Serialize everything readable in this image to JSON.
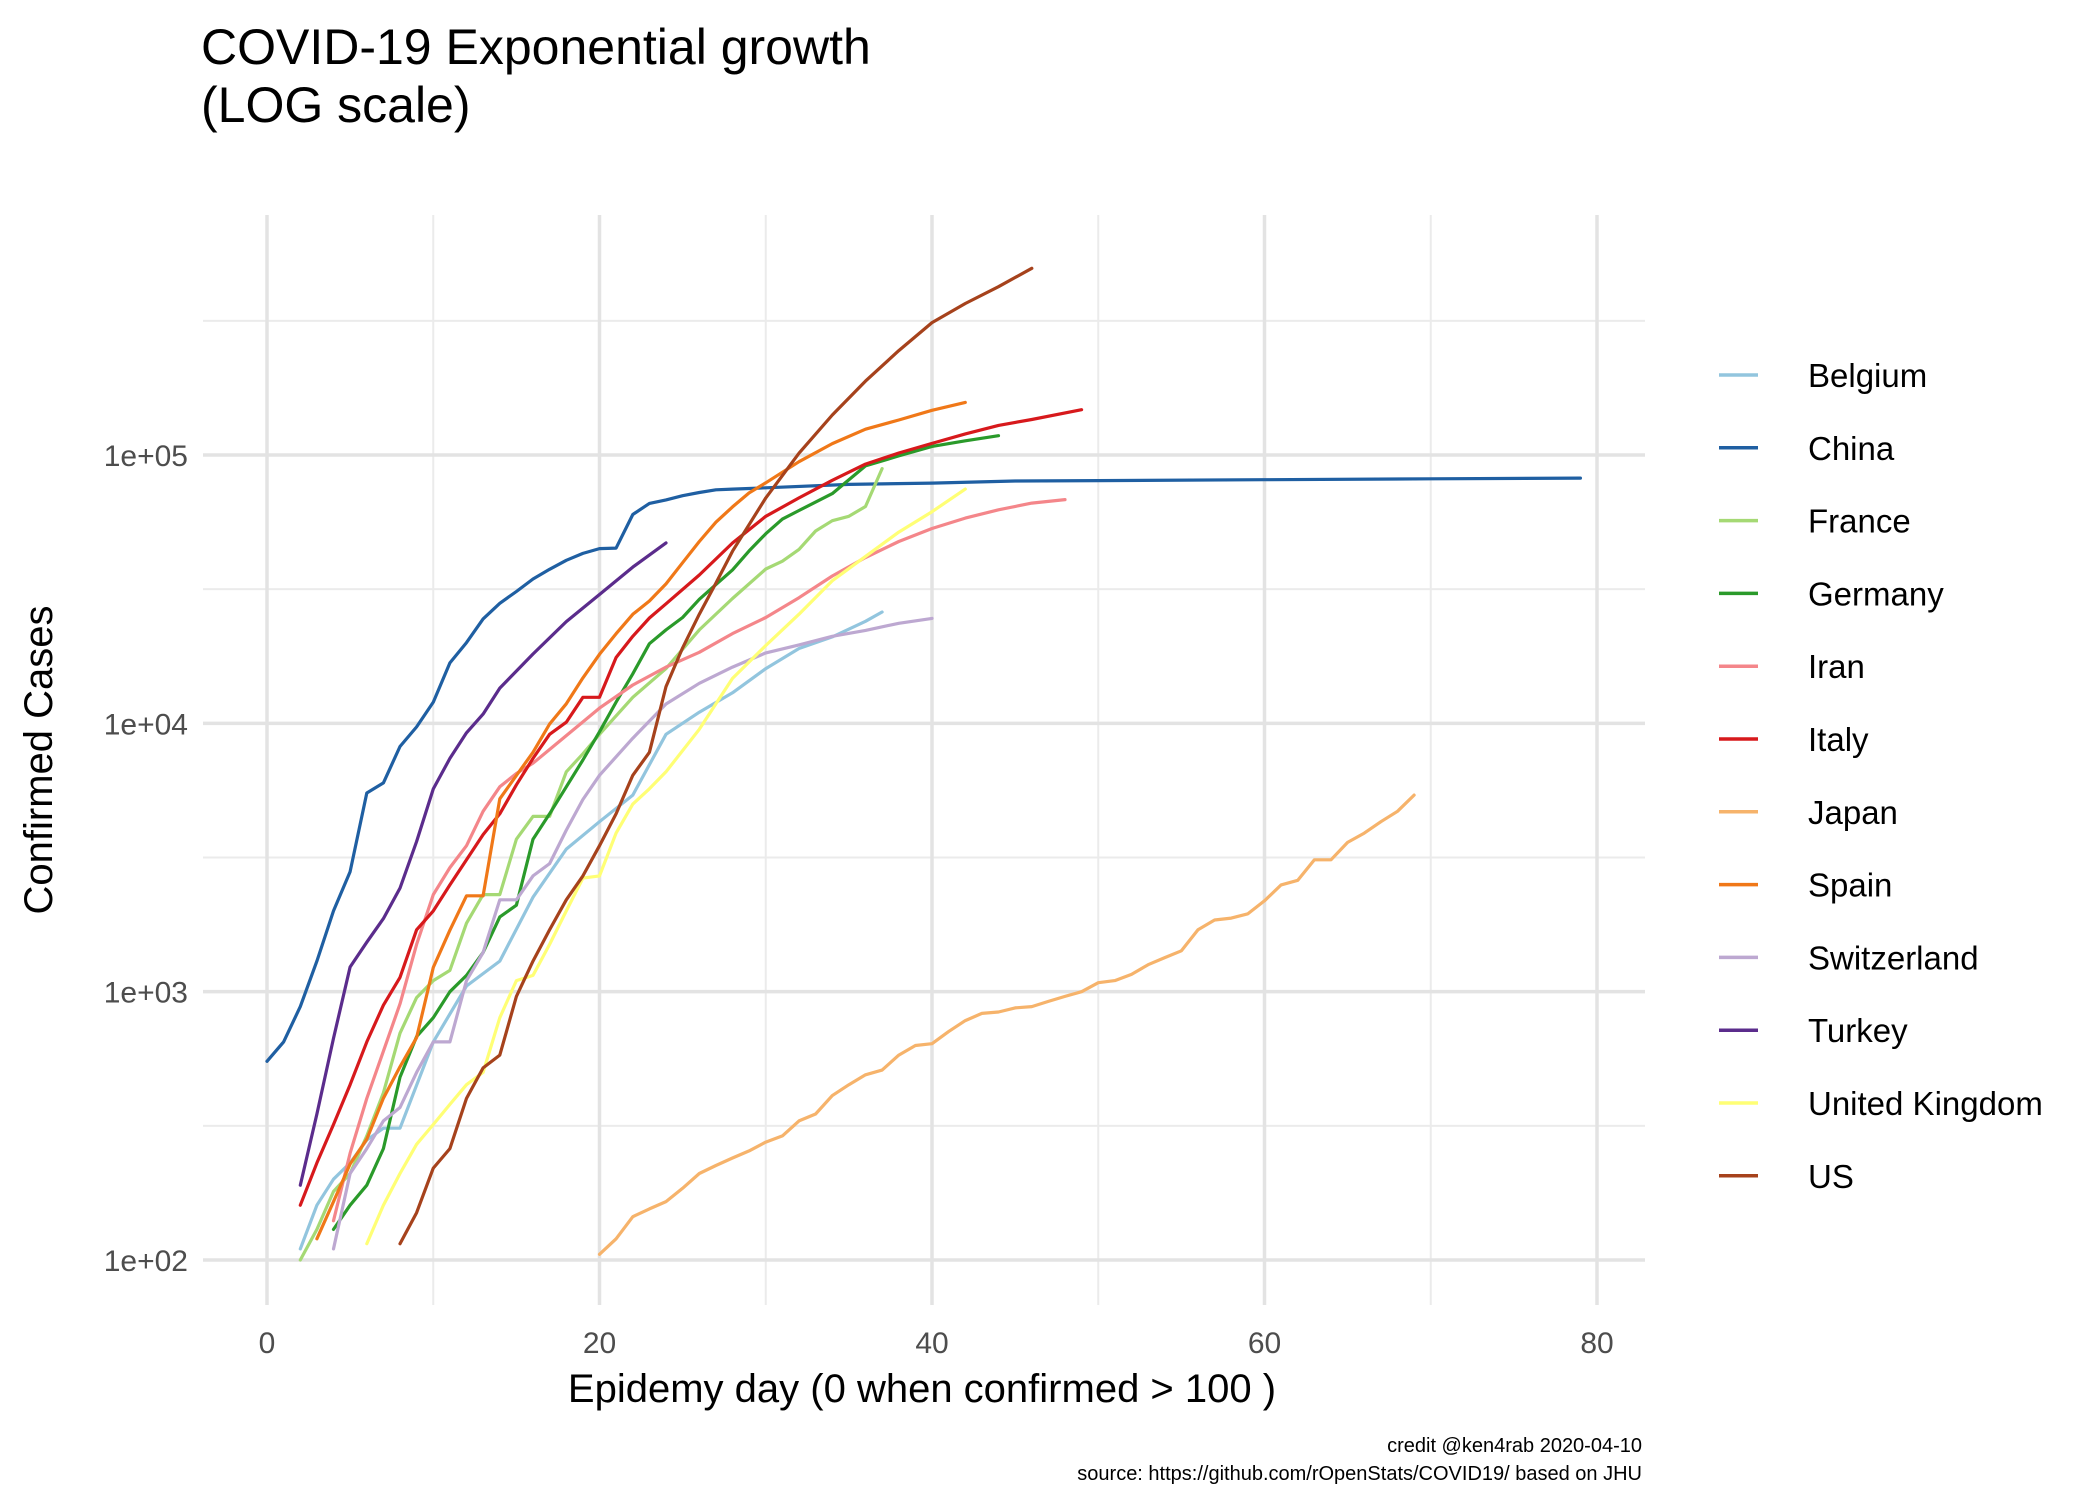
{
  "title_lines": [
    "COVID-19 Exponential growth",
    "(LOG scale)"
  ],
  "caption_lines": [
    "credit @ken4rab 2020-04-10",
    "source: https://github.com/rOpenStats/COVID19/ based on JHU"
  ],
  "chart_data": {
    "type": "line",
    "title": "COVID-19 Exponential growth (LOG scale)",
    "xlabel": "Epidemy day (0 when confirmed > 100 )",
    "ylabel": "Confirmed Cases",
    "x_scale": "linear",
    "y_scale": "log10",
    "xlim": [
      -3,
      83
    ],
    "ylim": [
      75,
      630000
    ],
    "x_ticks": [
      0,
      20,
      40,
      60,
      80
    ],
    "x_tick_labels": [
      "0",
      "20",
      "40",
      "60",
      "80"
    ],
    "y_ticks": [
      100,
      1000,
      10000,
      100000
    ],
    "y_tick_labels": [
      "1e+02",
      "1e+03",
      "1e+04",
      "1e+05"
    ],
    "grid": true,
    "legend_position": "right",
    "series": [
      {
        "name": "Belgium",
        "color": "#92c5de",
        "x": [
          2,
          3,
          4,
          5,
          6,
          7,
          8,
          10,
          12,
          14,
          16,
          18,
          20,
          22,
          24,
          26,
          28,
          30,
          32,
          34,
          36,
          37
        ],
        "y": [
          110,
          160,
          200,
          230,
          280,
          310,
          310,
          650,
          1050,
          1300,
          2250,
          3400,
          4300,
          5400,
          9100,
          11000,
          13000,
          16000,
          19000,
          21000,
          24000,
          26000
        ]
      },
      {
        "name": "China",
        "color": "#1f5fa2",
        "x": [
          0,
          1,
          2,
          3,
          4,
          5,
          6,
          7,
          8,
          9,
          10,
          11,
          12,
          13,
          14,
          15,
          16,
          17,
          18,
          19,
          20,
          21,
          22,
          23,
          24,
          25,
          26,
          27,
          28,
          29,
          30,
          35,
          40,
          45,
          50,
          60,
          70,
          79
        ],
        "y": [
          550,
          650,
          880,
          1300,
          2000,
          2800,
          5500,
          6000,
          8200,
          9700,
          12000,
          16800,
          20000,
          24500,
          28000,
          31000,
          34500,
          37500,
          40500,
          43000,
          44800,
          45000,
          60000,
          66000,
          68000,
          70500,
          72500,
          74200,
          74600,
          75000,
          75500,
          77700,
          78600,
          80000,
          80300,
          80900,
          81500,
          82000
        ]
      },
      {
        "name": "France",
        "color": "#a5d974",
        "x": [
          2,
          3,
          4,
          5,
          6,
          7,
          8,
          9,
          10,
          11,
          12,
          13,
          14,
          15,
          16,
          17,
          18,
          19,
          20,
          22,
          24,
          26,
          28,
          30,
          31,
          32,
          33,
          34,
          35,
          36,
          37
        ],
        "y": [
          100,
          130,
          180,
          210,
          290,
          420,
          700,
          950,
          1100,
          1200,
          1800,
          2300,
          2300,
          3700,
          4500,
          4500,
          6600,
          7700,
          9100,
          12500,
          16000,
          22300,
          29200,
          37600,
          40200,
          44500,
          52100,
          56900,
          59100,
          64300,
          89000
        ]
      },
      {
        "name": "Germany",
        "color": "#2a9a2a",
        "x": [
          4,
          5,
          6,
          7,
          8,
          9,
          10,
          11,
          12,
          13,
          14,
          15,
          16,
          17,
          18,
          19,
          20,
          21,
          22,
          23,
          24,
          25,
          26,
          27,
          28,
          29,
          30,
          31,
          32,
          34,
          36,
          38,
          40,
          42,
          44
        ],
        "y": [
          130,
          160,
          190,
          260,
          480,
          680,
          800,
          1000,
          1150,
          1400,
          1900,
          2100,
          3700,
          4600,
          5800,
          7300,
          9300,
          12000,
          15300,
          19800,
          22300,
          24800,
          29000,
          32900,
          37300,
          43900,
          50900,
          57700,
          62100,
          71800,
          91100,
          99200,
          107700,
          113000,
          118000
        ]
      },
      {
        "name": "Iran",
        "color": "#f4868a",
        "x": [
          4,
          5,
          6,
          7,
          8,
          9,
          10,
          11,
          12,
          13,
          14,
          15,
          16,
          18,
          20,
          22,
          24,
          26,
          28,
          30,
          32,
          34,
          36,
          38,
          40,
          42,
          44,
          46,
          48
        ],
        "y": [
          140,
          250,
          400,
          600,
          900,
          1500,
          2300,
          2900,
          3500,
          4700,
          5800,
          6500,
          7100,
          9000,
          11400,
          13900,
          16200,
          18400,
          21600,
          24800,
          29400,
          35400,
          41500,
          47600,
          53200,
          58200,
          62500,
          66200,
          68200
        ]
      },
      {
        "name": "Italy",
        "color": "#d7191c",
        "x": [
          2,
          3,
          4,
          5,
          6,
          7,
          8,
          9,
          10,
          11,
          12,
          13,
          14,
          15,
          16,
          17,
          18,
          19,
          20,
          21,
          22,
          23,
          24,
          26,
          28,
          30,
          32,
          34,
          36,
          38,
          40,
          42,
          44,
          46,
          49
        ],
        "y": [
          160,
          230,
          320,
          450,
          650,
          890,
          1130,
          1700,
          2000,
          2500,
          3100,
          3850,
          4600,
          5900,
          7400,
          9100,
          10100,
          12500,
          12500,
          17600,
          21100,
          24700,
          27900,
          35700,
          47000,
          59100,
          69200,
          80500,
          92500,
          101700,
          110500,
          119800,
          128900,
          135600,
          147500
        ]
      },
      {
        "name": "Japan",
        "color": "#f6b36b",
        "x": [
          20,
          21,
          22,
          23,
          24,
          25,
          26,
          27,
          28,
          29,
          30,
          31,
          32,
          33,
          34,
          35,
          36,
          37,
          38,
          39,
          40,
          41,
          42,
          43,
          44,
          45,
          46,
          47,
          48,
          49,
          50,
          51,
          52,
          53,
          54,
          55,
          56,
          57,
          58,
          59,
          60,
          61,
          62,
          63,
          64,
          65,
          66,
          67,
          68,
          69
        ],
        "y": [
          105,
          120,
          145,
          155,
          165,
          185,
          210,
          225,
          240,
          255,
          275,
          290,
          330,
          350,
          410,
          450,
          490,
          510,
          580,
          630,
          640,
          710,
          780,
          830,
          840,
          870,
          880,
          920,
          960,
          1000,
          1080,
          1100,
          1160,
          1260,
          1340,
          1420,
          1700,
          1850,
          1880,
          1950,
          2180,
          2500,
          2600,
          3100,
          3100,
          3600,
          3900,
          4300,
          4700,
          5400
        ]
      },
      {
        "name": "Spain",
        "color": "#f07818",
        "x": [
          3,
          4,
          5,
          6,
          7,
          8,
          9,
          10,
          11,
          12,
          13,
          14,
          15,
          16,
          17,
          18,
          19,
          20,
          21,
          22,
          23,
          24,
          25,
          26,
          27,
          28,
          29,
          30,
          32,
          34,
          36,
          38,
          40,
          42
        ],
        "y": [
          120,
          165,
          228,
          282,
          401,
          525,
          674,
          1231,
          1695,
          2277,
          2277,
          5232,
          6391,
          7798,
          9942,
          11826,
          14769,
          18077,
          21571,
          25496,
          28572,
          33089,
          39673,
          47610,
          56188,
          64059,
          72248,
          78797,
          94417,
          110238,
          124736,
          135032,
          146690,
          157022
        ]
      },
      {
        "name": "Switzerland",
        "color": "#bda8d1",
        "x": [
          4,
          5,
          6,
          7,
          8,
          9,
          10,
          11,
          12,
          13,
          14,
          15,
          16,
          17,
          18,
          19,
          20,
          22,
          24,
          26,
          28,
          30,
          32,
          34,
          36,
          38,
          40
        ],
        "y": [
          110,
          210,
          260,
          330,
          370,
          500,
          650,
          650,
          1100,
          1400,
          2200,
          2200,
          2700,
          3000,
          4000,
          5200,
          6400,
          8800,
          11800,
          14100,
          16200,
          18300,
          19600,
          21100,
          22200,
          23600,
          24600
        ]
      },
      {
        "name": "Turkey",
        "color": "#5b2c8c",
        "x": [
          2,
          3,
          4,
          5,
          6,
          7,
          8,
          9,
          10,
          11,
          12,
          13,
          14,
          16,
          18,
          20,
          22,
          24
        ],
        "y": [
          190,
          350,
          670,
          1236,
          1529,
          1872,
          2433,
          3629,
          5698,
          7402,
          9217,
          10827,
          13531,
          18135,
          23934,
          30217,
          38226,
          47029
        ]
      },
      {
        "name": "United Kingdom",
        "color": "#ffff75",
        "x": [
          6,
          7,
          8,
          9,
          10,
          11,
          12,
          13,
          14,
          15,
          16,
          17,
          18,
          19,
          20,
          21,
          22,
          23,
          24,
          26,
          28,
          30,
          32,
          34,
          36,
          38,
          40,
          42
        ],
        "y": [
          115,
          160,
          210,
          270,
          320,
          380,
          450,
          500,
          800,
          1100,
          1150,
          1500,
          2000,
          2650,
          2700,
          3900,
          5000,
          5700,
          6600,
          9500,
          14700,
          19500,
          25500,
          34000,
          41900,
          51600,
          61500,
          74600
        ]
      },
      {
        "name": "US",
        "color": "#a6421c",
        "x": [
          8,
          9,
          10,
          11,
          12,
          13,
          14,
          15,
          16,
          17,
          18,
          19,
          20,
          21,
          22,
          23,
          24,
          25,
          26,
          27,
          28,
          30,
          32,
          34,
          36,
          38,
          40,
          42,
          44,
          46
        ],
        "y": [
          115,
          150,
          220,
          260,
          400,
          520,
          580,
          960,
          1300,
          1700,
          2200,
          2700,
          3500,
          4600,
          6400,
          7800,
          13700,
          19100,
          25500,
          33300,
          43800,
          69200,
          101600,
          140900,
          188500,
          244900,
          311400,
          367000,
          424000,
          496500
        ]
      }
    ]
  }
}
